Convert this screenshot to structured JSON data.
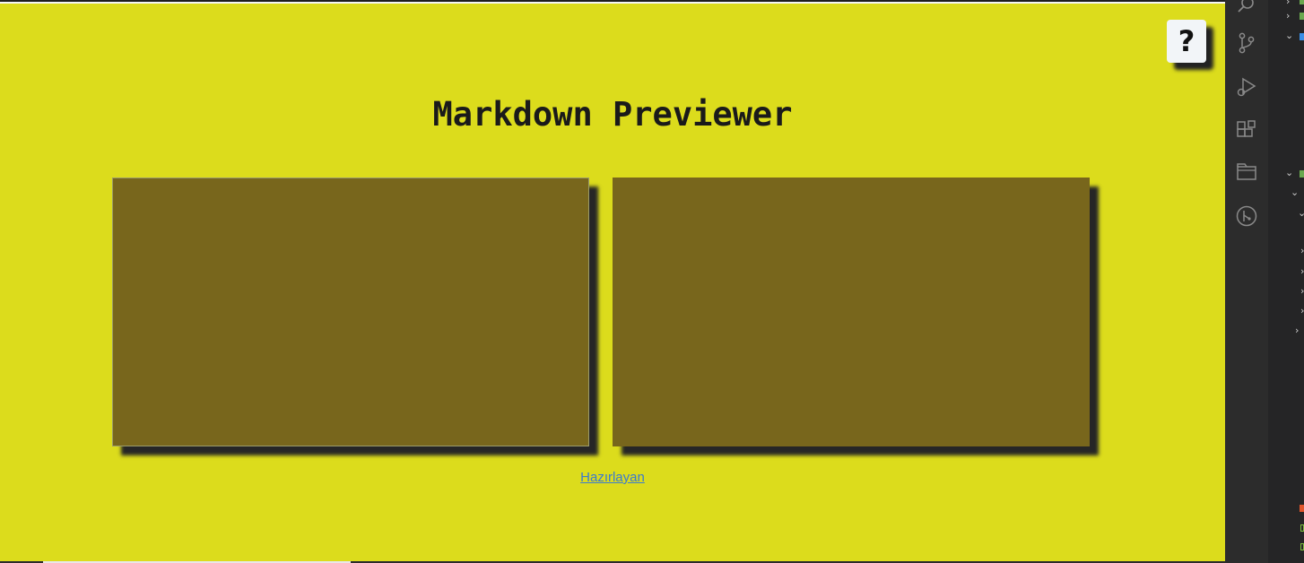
{
  "app": {
    "title": "Markdown Previewer",
    "help_label": "?",
    "credit_link": "Hazırlayan"
  },
  "colors": {
    "page_background": "#dcdc1c",
    "pane_background": "#78661c",
    "link": "#3a7ad0"
  },
  "editor": {
    "value": ""
  },
  "vscode": {
    "activity_icons": [
      "search-icon",
      "source-control-icon",
      "run-debug-icon",
      "extensions-icon",
      "remote-explorer-icon",
      "git-graph-icon"
    ]
  }
}
